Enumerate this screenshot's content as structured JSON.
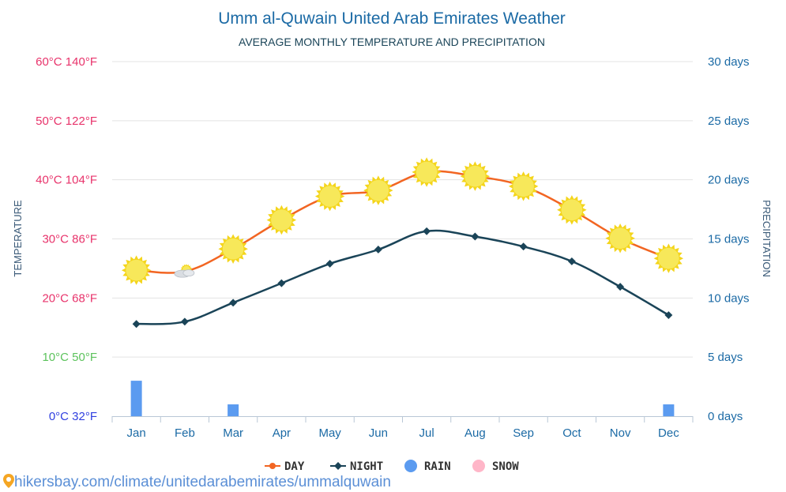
{
  "chart_data": {
    "type": "line",
    "title": "Umm al-Quwain United Arab Emirates Weather",
    "subtitle": "AVERAGE MONTHLY TEMPERATURE AND PRECIPITATION",
    "ylabel_left": "TEMPERATURE",
    "ylabel_right": "PRECIPITATION",
    "categories": [
      "Jan",
      "Feb",
      "Mar",
      "Apr",
      "May",
      "Jun",
      "Jul",
      "Aug",
      "Sep",
      "Oct",
      "Nov",
      "Dec"
    ],
    "temp_range_c": [
      0,
      60
    ],
    "precip_range_days": [
      0,
      30
    ],
    "left_ticks": [
      {
        "value": 60,
        "label": "60°C 140°F",
        "color": "#e8336b"
      },
      {
        "value": 50,
        "label": "50°C 122°F",
        "color": "#e8336b"
      },
      {
        "value": 40,
        "label": "40°C 104°F",
        "color": "#e8336b"
      },
      {
        "value": 30,
        "label": "30°C 86°F",
        "color": "#e8336b"
      },
      {
        "value": 20,
        "label": "20°C 68°F",
        "color": "#e8336b"
      },
      {
        "value": 10,
        "label": "10°C 50°F",
        "color": "#5cc35c"
      },
      {
        "value": 0,
        "label": "0°C 32°F",
        "color": "#2f3fe0"
      }
    ],
    "right_ticks": [
      {
        "value": 30,
        "label": "30 days"
      },
      {
        "value": 25,
        "label": "25 days"
      },
      {
        "value": 20,
        "label": "20 days"
      },
      {
        "value": 15,
        "label": "15 days"
      },
      {
        "value": 10,
        "label": "10 days"
      },
      {
        "value": 5,
        "label": "5 days"
      },
      {
        "value": 0,
        "label": "0 days"
      }
    ],
    "series": [
      {
        "name": "DAY",
        "unit": "°C",
        "color": "#f26522",
        "values": [
          24.7,
          24.5,
          28.3,
          33.2,
          37.2,
          38.2,
          41.3,
          40.6,
          38.9,
          34.9,
          30.1,
          26.7
        ]
      },
      {
        "name": "NIGHT",
        "unit": "°C",
        "color": "#1a4458",
        "values": [
          15.6,
          16.0,
          19.2,
          22.5,
          25.8,
          28.2,
          31.3,
          30.4,
          28.7,
          26.2,
          21.9,
          17.1
        ]
      },
      {
        "name": "RAIN",
        "unit": "days",
        "color": "#5b9bf0",
        "values": [
          3,
          0,
          1,
          0,
          0,
          0,
          0,
          0,
          0,
          0,
          0,
          1
        ]
      },
      {
        "name": "SNOW",
        "unit": "days",
        "color": "#ffb6c8",
        "values": [
          0,
          0,
          0,
          0,
          0,
          0,
          0,
          0,
          0,
          0,
          0,
          0
        ]
      }
    ],
    "day_icons": [
      "sun",
      "sun-cloud",
      "sun",
      "sun",
      "sun",
      "sun",
      "sun",
      "sun",
      "sun",
      "sun",
      "sun",
      "sun"
    ],
    "legend": [
      {
        "label": "DAY",
        "color": "#f26522",
        "marker": "dot"
      },
      {
        "label": "NIGHT",
        "color": "#1a4458",
        "marker": "diamond"
      },
      {
        "label": "RAIN",
        "color": "#5b9bf0",
        "marker": "circle"
      },
      {
        "label": "SNOW",
        "color": "#ffb6c8",
        "marker": "circle"
      }
    ],
    "legend_position": "bottom",
    "grid": true
  },
  "colors": {
    "title": "#1b6aa5",
    "subtitle": "#1a4458",
    "axis_text": "#1b6aa5",
    "grid": "#e3e3e3"
  },
  "footer": {
    "text": "hikersbay.com/climate/unitedarabemirates/ummalquwain"
  }
}
